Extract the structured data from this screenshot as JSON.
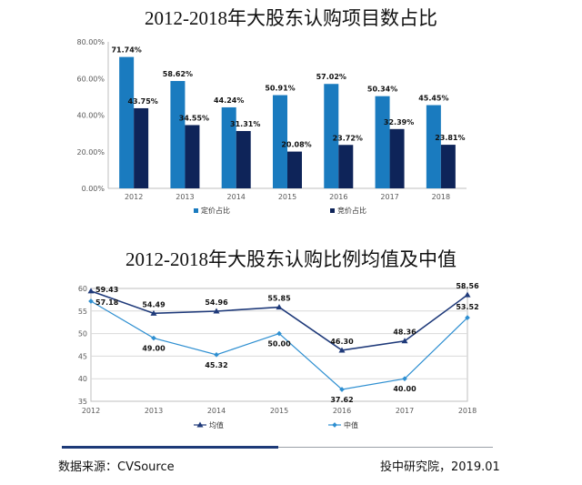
{
  "chart_data": [
    {
      "type": "bar",
      "title": "2012-2018年大股东认购项目数占比",
      "categories": [
        "2012",
        "2013",
        "2014",
        "2015",
        "2016",
        "2017",
        "2018"
      ],
      "series": [
        {
          "name": "定价占比",
          "values": [
            71.74,
            58.62,
            44.24,
            50.91,
            57.02,
            50.34,
            45.45
          ],
          "labels": [
            "71.74%",
            "58.62%",
            "44.24%",
            "50.91%",
            "57.02%",
            "50.34%",
            "45.45%"
          ],
          "color": "#1a7bbf"
        },
        {
          "name": "竞价占比",
          "values": [
            43.75,
            34.55,
            31.31,
            20.08,
            23.72,
            32.39,
            23.81
          ],
          "labels": [
            "43.75%",
            "34.55%",
            "31.31%",
            "20.08%",
            "23.72%",
            "32.39%",
            "23.81%"
          ],
          "color": "#0e2459"
        }
      ],
      "yticks": [
        "0.00%",
        "20.00%",
        "40.00%",
        "60.00%",
        "80.00%"
      ],
      "ylim": [
        0,
        80
      ],
      "legend": "bottom",
      "grid": false
    },
    {
      "type": "line",
      "title": "2012-2018年大股东认购比例均值及中值",
      "categories": [
        "2012",
        "2013",
        "2014",
        "2015",
        "2016",
        "2017",
        "2018"
      ],
      "series": [
        {
          "name": "均值",
          "values": [
            59.43,
            54.49,
            54.96,
            55.85,
            46.3,
            48.36,
            58.56
          ],
          "labels": [
            "59.43",
            "54.49",
            "54.96",
            "55.85",
            "46.30",
            "48.36",
            "58.56"
          ],
          "color": "#1f3a7a"
        },
        {
          "name": "中值",
          "values": [
            57.18,
            49.0,
            45.32,
            50.0,
            37.62,
            40.0,
            53.52
          ],
          "labels": [
            "57.18",
            "49.00",
            "45.32",
            "50.00",
            "37.62",
            "40.00",
            "53.52"
          ],
          "color": "#2e8fd1"
        }
      ],
      "yticks": [
        "35",
        "40",
        "45",
        "50",
        "55",
        "60"
      ],
      "ylim": [
        35,
        60
      ],
      "legend": "bottom",
      "grid": true
    }
  ],
  "footer": {
    "source": "数据来源：CVSource",
    "credit": "投中研究院，2019.01"
  }
}
